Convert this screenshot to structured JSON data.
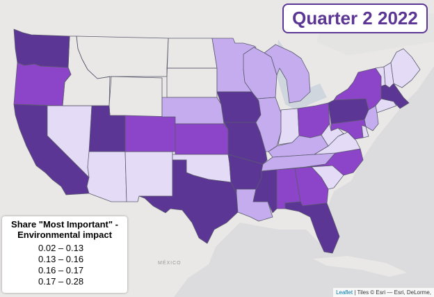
{
  "title": "Quarter 2 2022",
  "legend": {
    "title_line1": "Share \"Most Important\" -",
    "title_line2": "Environmental impact",
    "bins": [
      {
        "label": "0.02 – 0.13",
        "color": "#e4dcf6"
      },
      {
        "label": "0.13 – 0.16",
        "color": "#c4acee"
      },
      {
        "label": "0.16 – 0.17",
        "color": "#8c44c8"
      },
      {
        "label": "0.17 – 0.28",
        "color": "#5c3694"
      }
    ]
  },
  "attribution": {
    "link": "Leaflet",
    "text": " | Tiles © Esri — Esri, DeLorme,"
  },
  "basemap_labels": {
    "mexico": "MÉXICO"
  },
  "state_bins": {
    "WA": 4,
    "OR": 3,
    "CA": 4,
    "NV": 1,
    "ID": 0,
    "MT": 0,
    "WY": 0,
    "UT": 4,
    "AZ": 1,
    "NM": 1,
    "CO": 3,
    "ND": 0,
    "SD": 0,
    "NE": 2,
    "KS": 3,
    "OK": 1,
    "TX": 4,
    "MN": 2,
    "IA": 4,
    "MO": 4,
    "AR": 4,
    "LA": 2,
    "WI": 2,
    "IL": 2,
    "MI": 2,
    "IN": 1,
    "OH": 3,
    "KY": 2,
    "TN": 2,
    "MS": 4,
    "AL": 3,
    "GA": 3,
    "FL": 4,
    "SC": 1,
    "NC": 3,
    "VA": 1,
    "WV": 1,
    "PA": 4,
    "NY": 3,
    "VT": 1,
    "NH": 1,
    "ME": 1,
    "MA": 4,
    "CT": 1,
    "NJ": 2,
    "DE": 1,
    "MD": 3
  }
}
